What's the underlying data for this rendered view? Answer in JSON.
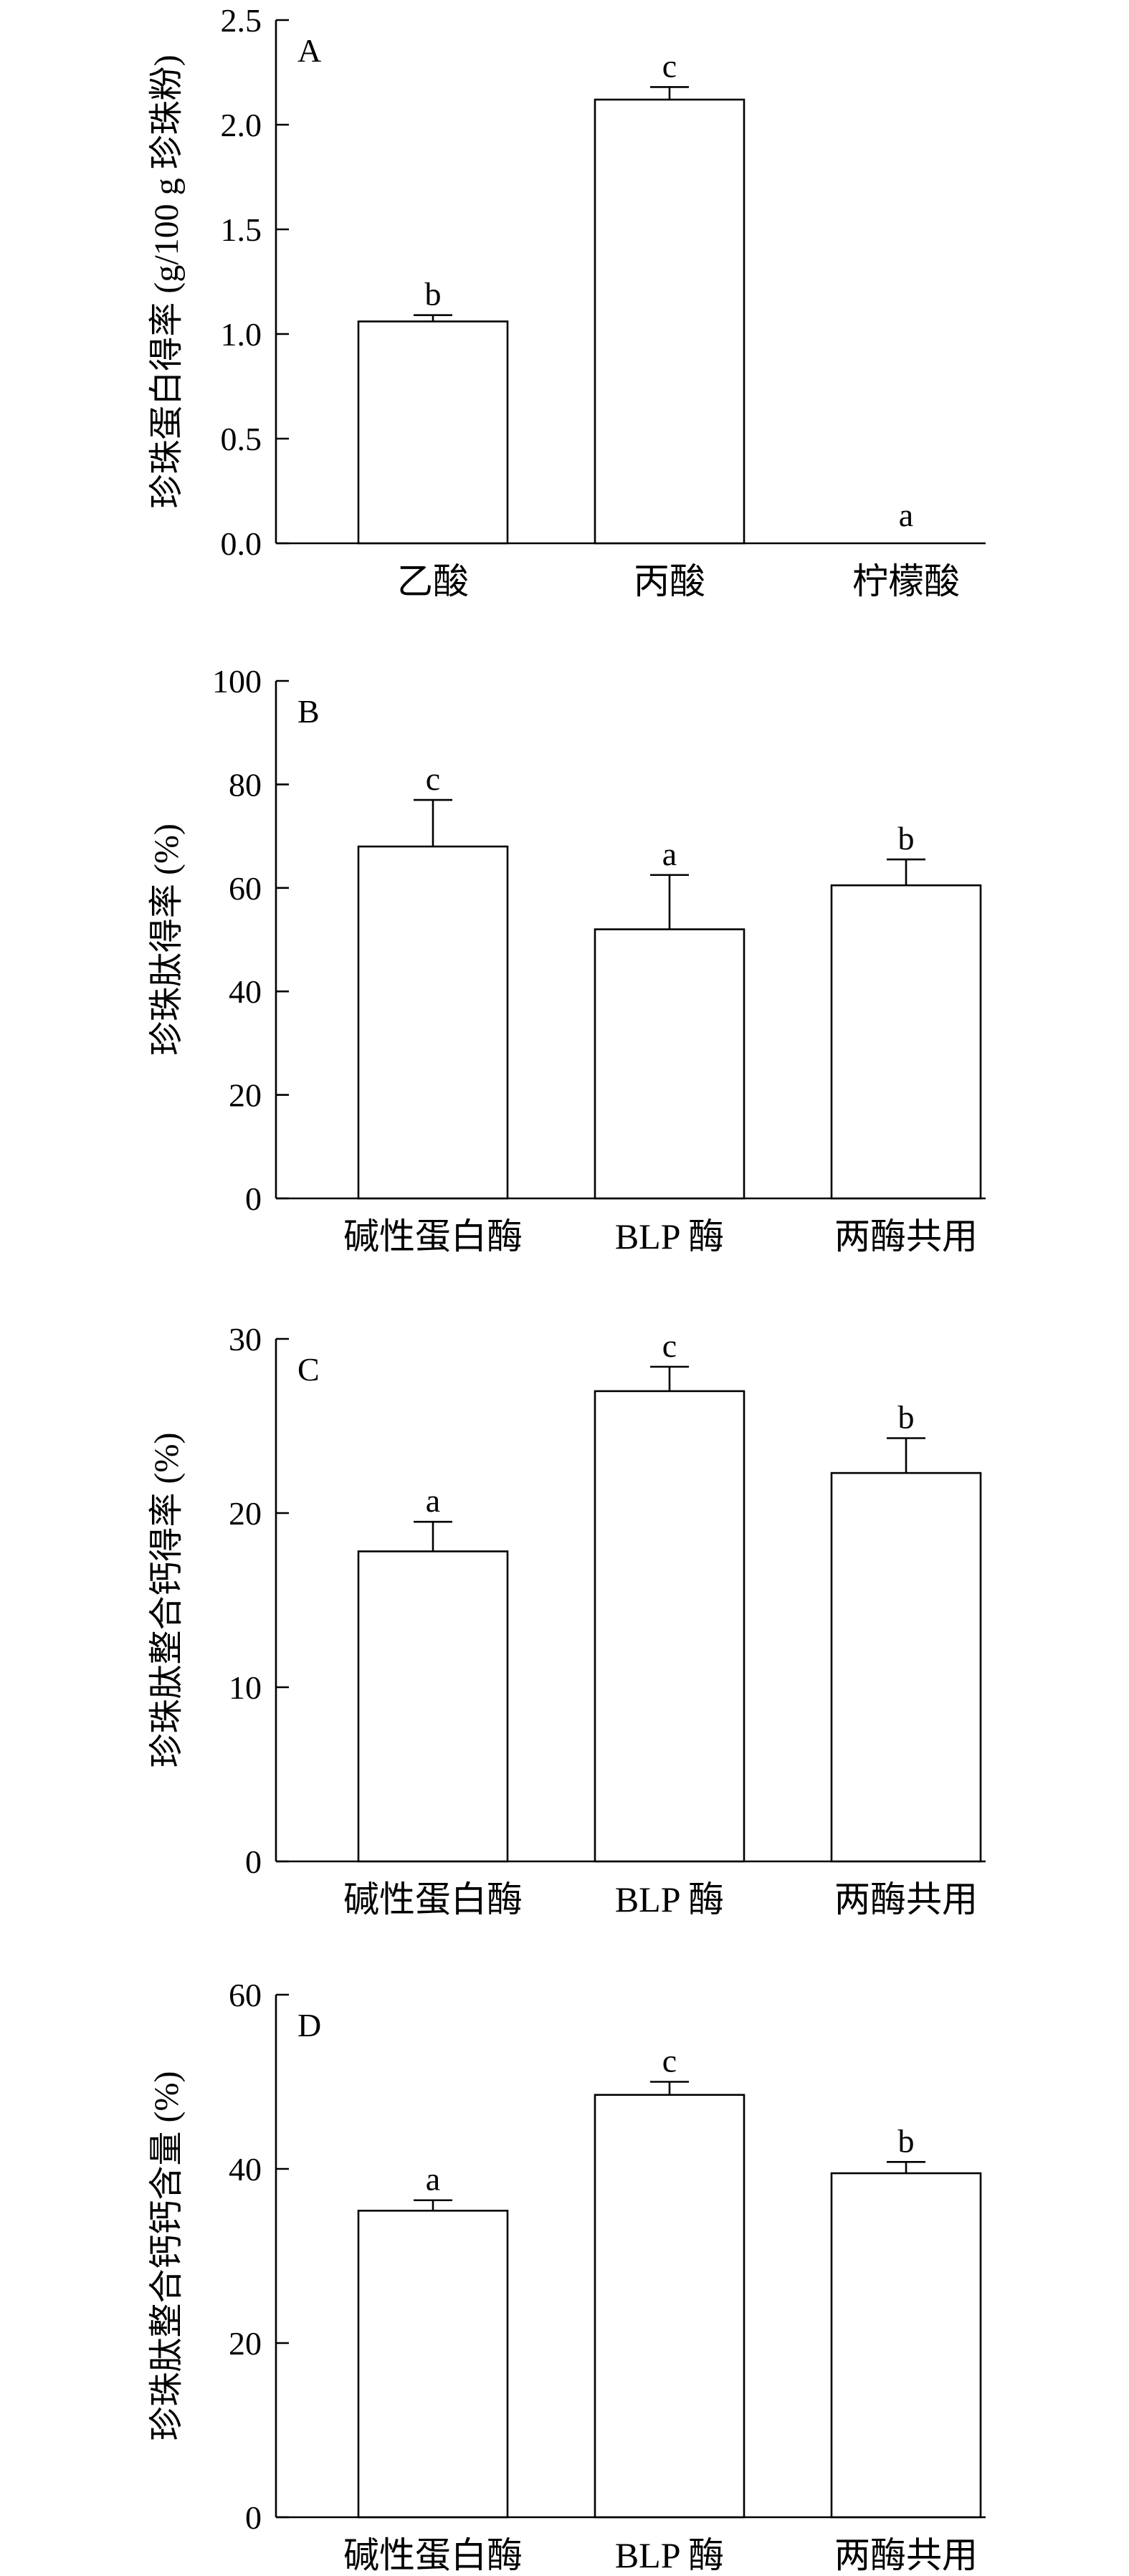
{
  "chart_data": [
    {
      "type": "bar",
      "panel": "A",
      "ylabel": "珍珠蛋白得率 (g/100 g 珍珠粉)",
      "ylim": [
        0,
        2.5
      ],
      "yticks": [
        "0.0",
        "0.5",
        "1.0",
        "1.5",
        "2.0",
        "2.5"
      ],
      "categories": [
        "乙酸",
        "丙酸",
        "柠檬酸"
      ],
      "values": [
        1.06,
        2.12,
        0.0
      ],
      "errors": [
        0.03,
        0.06,
        0.0
      ],
      "significance": [
        "b",
        "c",
        "a"
      ]
    },
    {
      "type": "bar",
      "panel": "B",
      "ylabel": "珍珠肽得率 (%)",
      "ylim": [
        0,
        100
      ],
      "yticks": [
        "0",
        "20",
        "40",
        "60",
        "80",
        "100"
      ],
      "categories": [
        "碱性蛋白酶",
        "BLP 酶",
        "两酶共用"
      ],
      "values": [
        68,
        52,
        60.5
      ],
      "errors": [
        9,
        10.5,
        5
      ],
      "significance": [
        "c",
        "a",
        "b"
      ]
    },
    {
      "type": "bar",
      "panel": "C",
      "ylabel": "珍珠肽整合钙得率 (%)",
      "ylim": [
        0,
        30
      ],
      "yticks": [
        "0",
        "10",
        "20",
        "30"
      ],
      "categories": [
        "碱性蛋白酶",
        "BLP 酶",
        "两酶共用"
      ],
      "values": [
        17.8,
        27.0,
        22.3
      ],
      "errors": [
        1.7,
        1.4,
        2.0
      ],
      "significance": [
        "a",
        "c",
        "b"
      ]
    },
    {
      "type": "bar",
      "panel": "D",
      "ylabel": "珍珠肽整合钙钙含量 (%)",
      "ylim": [
        0,
        60
      ],
      "yticks": [
        "0",
        "20",
        "40",
        "60"
      ],
      "categories": [
        "碱性蛋白酶",
        "BLP 酶",
        "两酶共用"
      ],
      "values": [
        35.2,
        48.5,
        39.5
      ],
      "errors": [
        1.2,
        1.5,
        1.3
      ],
      "significance": [
        "a",
        "c",
        "b"
      ]
    }
  ]
}
